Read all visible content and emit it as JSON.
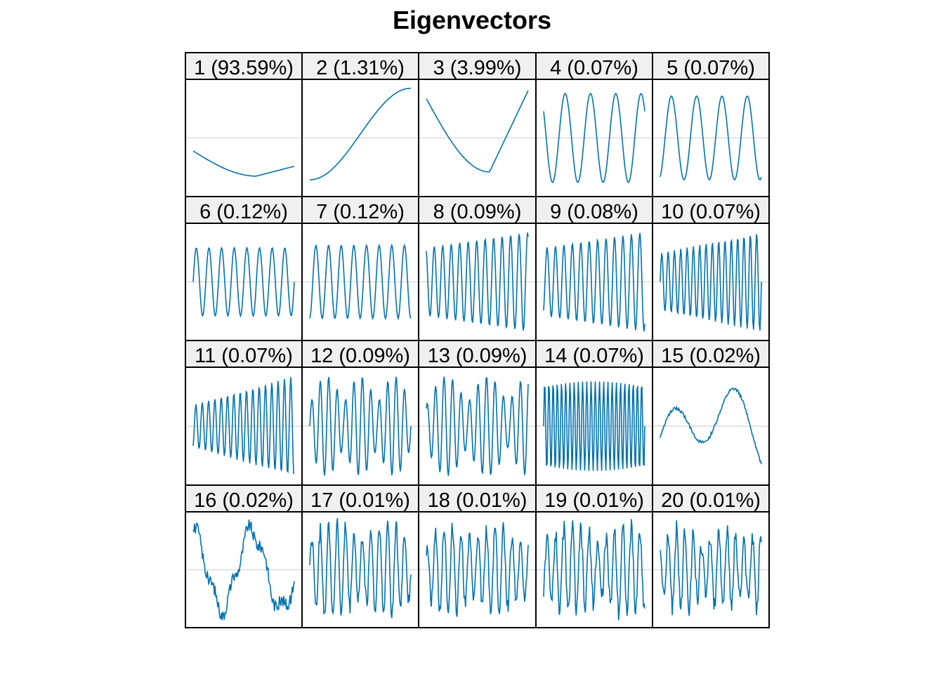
{
  "chart_data": {
    "type": "line",
    "title": "Eigenvectors",
    "xlabel": "",
    "ylabel": "",
    "grid": "horizontal zero line per panel",
    "layout": "4 rows x 5 columns of small multiples",
    "line_color": "#0072b2",
    "panels": [
      {
        "label": "1 (93.59%)",
        "index": 1,
        "variance_pct": 93.59,
        "shape": "decreasing then rising, smooth U, below zero"
      },
      {
        "label": "2 (1.31%)",
        "index": 2,
        "variance_pct": 1.31,
        "shape": "smooth monotone rise from low to high"
      },
      {
        "label": "3 (3.99%)",
        "index": 3,
        "variance_pct": 3.99,
        "shape": "high, dips to minimum near 60%, rises high"
      },
      {
        "label": "4 (0.07%)",
        "index": 4,
        "variance_pct": 0.07,
        "shape": "about 4 cycles of oscillation"
      },
      {
        "label": "5 (0.07%)",
        "index": 5,
        "variance_pct": 0.07,
        "shape": "about 4 cycles of oscillation"
      },
      {
        "label": "6 (0.12%)",
        "index": 6,
        "variance_pct": 0.12,
        "shape": "about 8 cycles of oscillation"
      },
      {
        "label": "7 (0.12%)",
        "index": 7,
        "variance_pct": 0.12,
        "shape": "about 8 cycles of oscillation"
      },
      {
        "label": "8 (0.09%)",
        "index": 8,
        "variance_pct": 0.09,
        "shape": "about 12 cycles, growing amplitude"
      },
      {
        "label": "9 (0.08%)",
        "index": 9,
        "variance_pct": 0.08,
        "shape": "about 12 cycles, growing amplitude"
      },
      {
        "label": "10 (0.07%)",
        "index": 10,
        "variance_pct": 0.07,
        "shape": "about 16 cycles, growing amplitude"
      },
      {
        "label": "11 (0.07%)",
        "index": 11,
        "variance_pct": 0.07,
        "shape": "about 16 cycles, growing amplitude"
      },
      {
        "label": "12 (0.09%)",
        "index": 12,
        "variance_pct": 0.09,
        "shape": "about 12 cycles, beating amplitude"
      },
      {
        "label": "13 (0.09%)",
        "index": 13,
        "variance_pct": 0.09,
        "shape": "about 12 cycles, beating amplitude"
      },
      {
        "label": "14 (0.07%)",
        "index": 14,
        "variance_pct": 0.07,
        "shape": "about 24 cycles, near-constant amplitude"
      },
      {
        "label": "15 (0.02%)",
        "index": 15,
        "variance_pct": 0.02,
        "shape": "slow wave: rise, fall, large peak, fall"
      },
      {
        "label": "16 (0.02%)",
        "index": 16,
        "variance_pct": 0.02,
        "shape": "slow noisy wave: high, deep dip, peak, dip, rise"
      },
      {
        "label": "17 (0.01%)",
        "index": 17,
        "variance_pct": 0.01,
        "shape": "noisy oscillation about 12 cycles"
      },
      {
        "label": "18 (0.01%)",
        "index": 18,
        "variance_pct": 0.01,
        "shape": "noisy oscillation about 12 cycles"
      },
      {
        "label": "19 (0.01%)",
        "index": 19,
        "variance_pct": 0.01,
        "shape": "noisy oscillation about 12 cycles"
      },
      {
        "label": "20 (0.01%)",
        "index": 20,
        "variance_pct": 0.01,
        "shape": "noisy oscillation about 12 cycles"
      }
    ]
  }
}
